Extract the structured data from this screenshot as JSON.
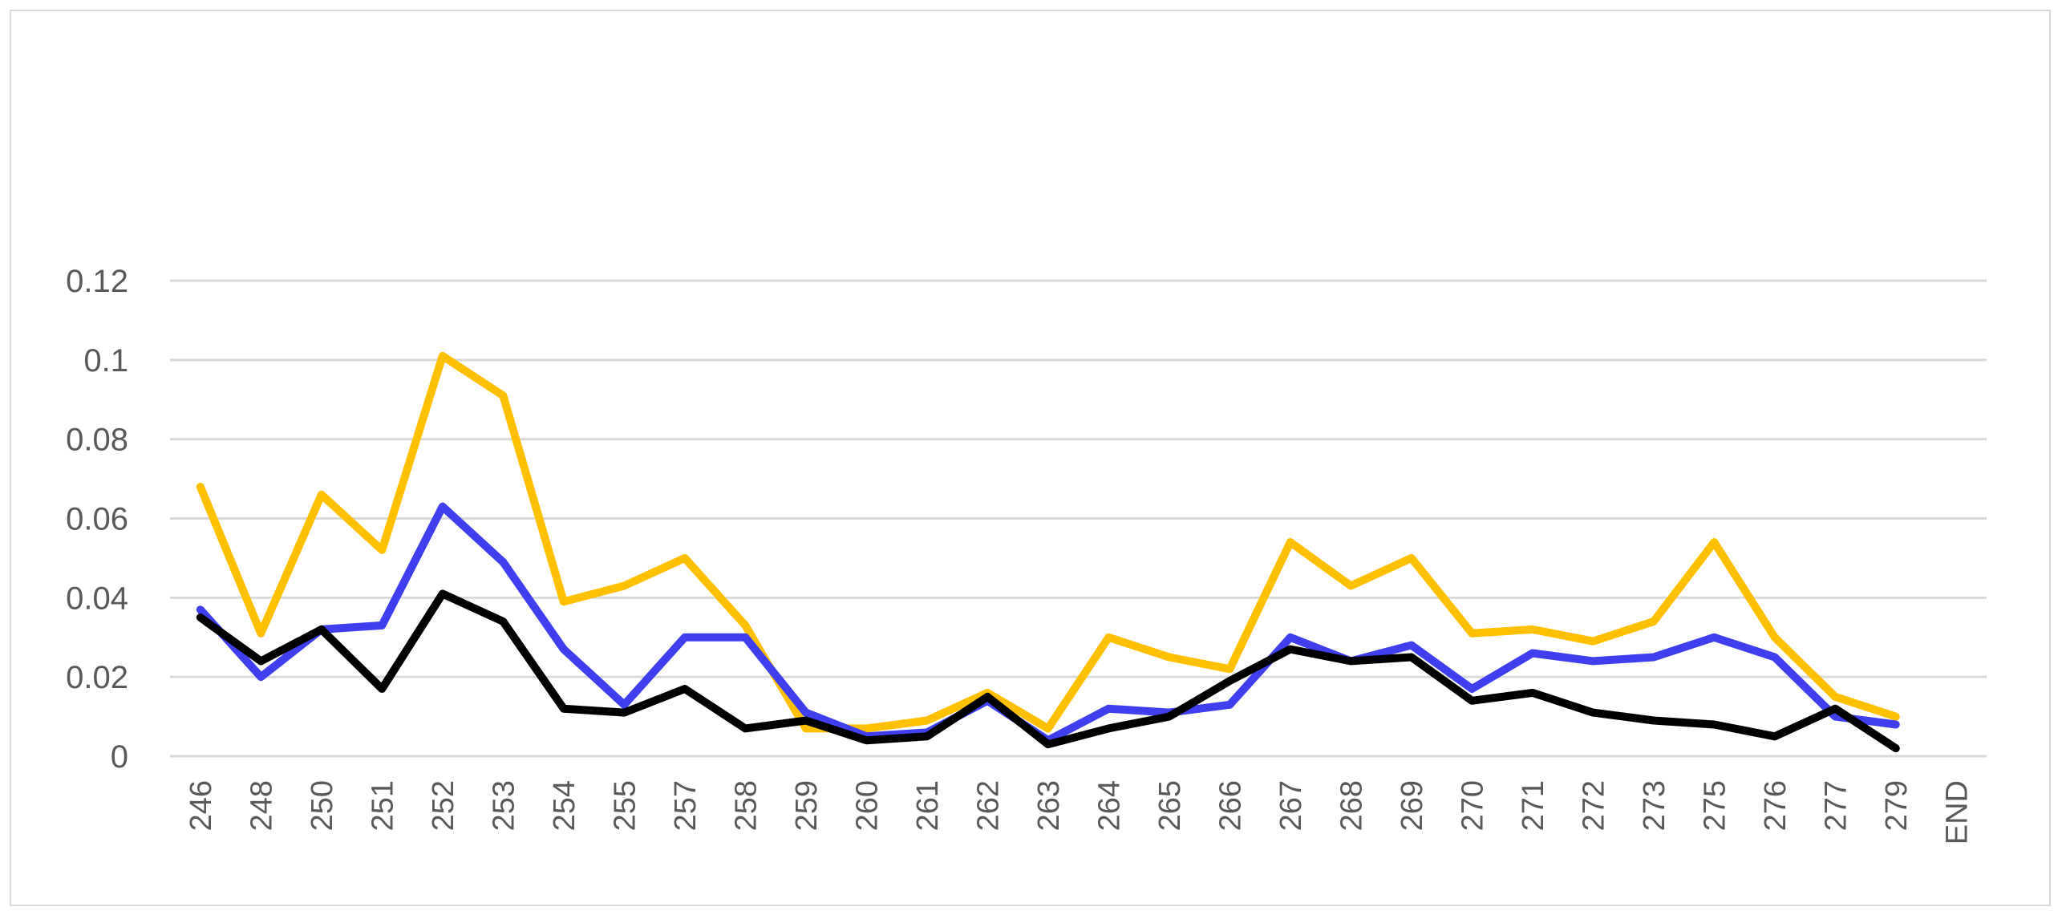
{
  "chart_data": {
    "type": "line",
    "title": "",
    "xlabel": "",
    "ylabel": "",
    "ylim": [
      0,
      0.12
    ],
    "yticks": [
      "0",
      "0.02",
      "0.04",
      "0.06",
      "0.08",
      "0.1",
      "0.12"
    ],
    "grid": true,
    "categories": [
      "246",
      "248",
      "250",
      "251",
      "252",
      "253",
      "254",
      "255",
      "257",
      "258",
      "259",
      "260",
      "261",
      "262",
      "263",
      "264",
      "265",
      "266",
      "267",
      "268",
      "269",
      "270",
      "271",
      "272",
      "273",
      "275",
      "276",
      "277",
      "279",
      "END"
    ],
    "series": [
      {
        "color": "#ffc000",
        "values": [
          0.068,
          0.031,
          0.066,
          0.052,
          0.101,
          0.091,
          0.039,
          0.043,
          0.05,
          0.033,
          0.007,
          0.007,
          0.009,
          0.016,
          0.007,
          0.03,
          0.025,
          0.022,
          0.054,
          0.043,
          0.05,
          0.031,
          0.032,
          0.029,
          0.034,
          0.054,
          0.03,
          0.015,
          0.01,
          null
        ]
      },
      {
        "color": "#3f3ff0",
        "values": [
          0.037,
          0.02,
          0.032,
          0.033,
          0.063,
          0.049,
          0.027,
          0.013,
          0.03,
          0.03,
          0.011,
          0.005,
          0.006,
          0.014,
          0.004,
          0.012,
          0.011,
          0.013,
          0.03,
          0.024,
          0.028,
          0.017,
          0.026,
          0.024,
          0.025,
          0.03,
          0.025,
          0.01,
          0.008,
          null
        ]
      },
      {
        "color": "#000000",
        "values": [
          0.035,
          0.024,
          0.032,
          0.017,
          0.041,
          0.034,
          0.012,
          0.011,
          0.017,
          0.007,
          0.009,
          0.004,
          0.005,
          0.015,
          0.003,
          0.007,
          0.01,
          0.019,
          0.027,
          0.024,
          0.025,
          0.014,
          0.016,
          0.011,
          0.009,
          0.008,
          0.005,
          0.012,
          0.002,
          null
        ]
      }
    ]
  }
}
